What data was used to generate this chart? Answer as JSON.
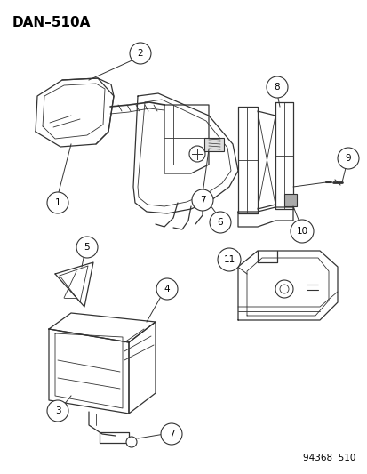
{
  "title": "DAN–510A",
  "footer": "94368  510",
  "bg_color": "#ffffff",
  "line_color": "#333333",
  "label_color": "#000000",
  "title_fontsize": 11,
  "footer_fontsize": 7.5,
  "callout_r": 0.028
}
